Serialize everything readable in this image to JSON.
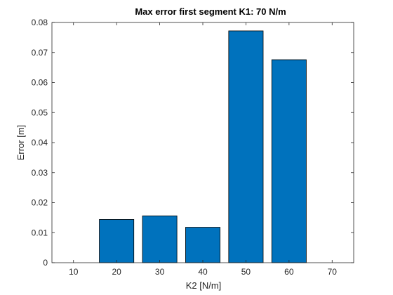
{
  "chart_data": {
    "type": "bar",
    "title": "Max error first segment K1: 70 N/m",
    "xlabel": "K2 [N/m]",
    "ylabel": "Error [m]",
    "categories": [
      10,
      20,
      30,
      40,
      50,
      60,
      70
    ],
    "values": [
      0,
      0.0144,
      0.0156,
      0.0118,
      0.0772,
      0.0676,
      0
    ],
    "xticks": [
      "10",
      "20",
      "30",
      "40",
      "50",
      "60",
      "70"
    ],
    "yticks": [
      "0",
      "0.01",
      "0.02",
      "0.03",
      "0.04",
      "0.05",
      "0.06",
      "0.07",
      "0.08"
    ],
    "xlim": [
      5,
      75
    ],
    "ylim": [
      0,
      0.08
    ],
    "bar_color": "#0072BD",
    "grid": false,
    "legend": "none"
  }
}
